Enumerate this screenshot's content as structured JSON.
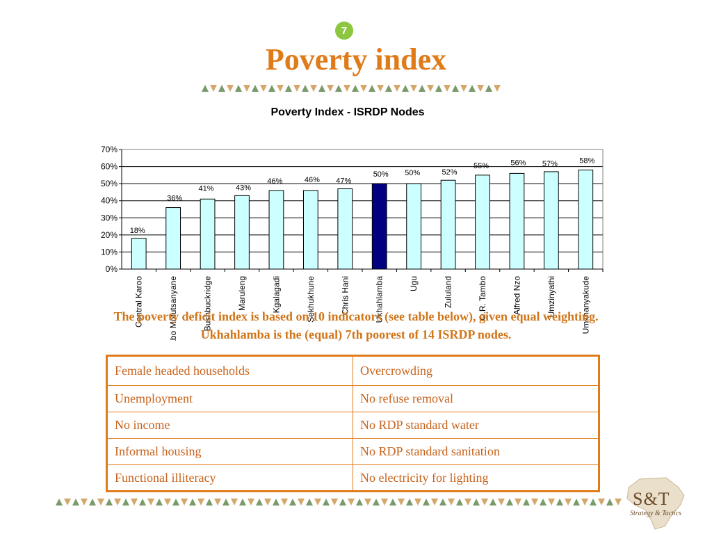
{
  "slide": {
    "number": "7",
    "title": "Poverty index"
  },
  "chart_data": {
    "type": "bar",
    "title": "Poverty Index - ISRDP Nodes",
    "xlabel": "",
    "ylabel": "",
    "categories": [
      "Central Karoo",
      "Thabo Mofutsanyane",
      "Bushbuckridge",
      "Maruleng",
      "Kgalagadi",
      "Sekhukhune",
      "Chris Hani",
      "Ukhahlamba",
      "Ugu",
      "Zululand",
      "O.R. Tambo",
      "Alfred Nzo",
      "Umzinyathi",
      "Umkhanyakude"
    ],
    "values": [
      18,
      36,
      41,
      43,
      46,
      46,
      47,
      50,
      50,
      52,
      55,
      56,
      57,
      58
    ],
    "data_labels": [
      "18%",
      "36%",
      "41%",
      "43%",
      "46%",
      "46%",
      "47%",
      "50%",
      "50%",
      "52%",
      "55%",
      "56%",
      "57%",
      "58%"
    ],
    "highlight_index": 7,
    "ylim": [
      0,
      70
    ],
    "yticks": [
      "0%",
      "10%",
      "20%",
      "30%",
      "40%",
      "50%",
      "60%",
      "70%"
    ],
    "grid": true,
    "colors": {
      "bar": "#ccffff",
      "highlight": "#000080",
      "outline": "#000000"
    }
  },
  "caption": {
    "line1": "The poverty deficit index is based on 10 indicators (see table below), given equal weighting.",
    "line2": "Ukhahlamba is the (equal) 7th poorest of 14 ISRDP nodes."
  },
  "indicators": {
    "rows": [
      [
        "Female headed households",
        "Overcrowding"
      ],
      [
        "Unemployment",
        "No refuse removal"
      ],
      [
        "No income",
        "No RDP standard water"
      ],
      [
        "Informal housing",
        "No RDP standard sanitation"
      ],
      [
        "Functional illiteracy",
        "No electricity for lighting"
      ]
    ]
  },
  "logo": {
    "main": "S&T",
    "sub": "Strategy & Tactics"
  },
  "colors": {
    "accent": "#e07b1a",
    "badge": "#8dc63f",
    "triangle_green": "#7a9a6a",
    "triangle_tan": "#d4a76a"
  }
}
